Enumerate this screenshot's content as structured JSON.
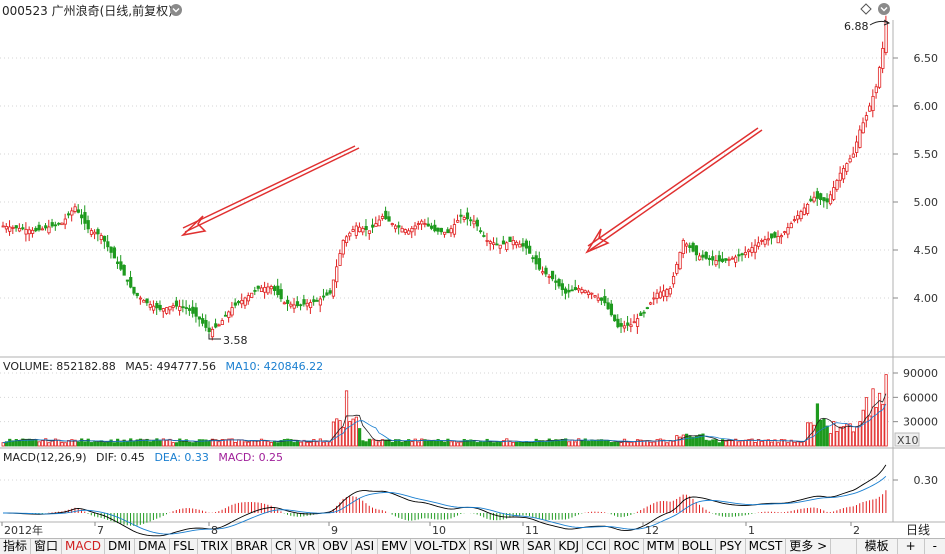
{
  "header": {
    "title": "000523 广州浪奇(日线,前复权)",
    "dropdown_icon": "chevron-down-icon",
    "diamond_icon": "diamond-icon",
    "settings_icon": "chevron-down-circle-icon"
  },
  "price_panel": {
    "high_label": "6.88",
    "low_label": "3.58",
    "y_ticks": [
      "4.00",
      "4.50",
      "5.00",
      "5.50",
      "6.00",
      "6.50"
    ]
  },
  "volume_panel": {
    "legend": {
      "name": "VOLUME: 852182.88",
      "ma5": "MA5: 494777.56",
      "ma10": "MA10: 420846.22"
    },
    "y_ticks": [
      "30000",
      "60000",
      "90000"
    ],
    "unit": "X10"
  },
  "macd_panel": {
    "legend": {
      "name": "MACD(12,26,9)",
      "dif": "DIF: 0.45",
      "dea": "DEA: 0.33",
      "macd": "MACD: 0.25"
    },
    "y_ticks": [
      "0.30"
    ]
  },
  "date_axis": {
    "labels": [
      "2012年",
      "7",
      "8",
      "9",
      "10",
      "11",
      "12",
      "1",
      "2"
    ],
    "period_label": "日线"
  },
  "tabs": [
    "指标",
    "窗口",
    "MACD",
    "DMI",
    "DMA",
    "FSL",
    "TRIX",
    "BRAR",
    "CR",
    "VR",
    "OBV",
    "ASI",
    "EMV",
    "VOL-TDX",
    "RSI",
    "WR",
    "SAR",
    "KDJ",
    "CCI",
    "ROC",
    "MTM",
    "BOLL",
    "PSY",
    "MCST",
    "更多 >"
  ],
  "active_tab": "MACD",
  "right_tabs": [
    "模板",
    "+",
    "-"
  ],
  "colors": {
    "up": "#e02020",
    "down": "#1e9a1e",
    "arrow": "#e03030",
    "dif": "#000000",
    "dea": "#1a7fd0",
    "macd_text": "#a0209a",
    "ma10": "#1a7fd0"
  },
  "chart_data": {
    "type": "candlestick",
    "title": "000523 广州浪奇(日线,前复权)",
    "x_range": [
      "2012-06",
      "2013-02"
    ],
    "ylim": [
      3.5,
      6.95
    ],
    "annotations": [
      {
        "text": "6.88",
        "type": "high"
      },
      {
        "text": "3.58",
        "type": "low"
      }
    ],
    "price_waypoints": [
      [
        0,
        4.75
      ],
      [
        10,
        4.7
      ],
      [
        18,
        4.78
      ],
      [
        22,
        4.95
      ],
      [
        26,
        4.72
      ],
      [
        30,
        4.65
      ],
      [
        36,
        4.3
      ],
      [
        40,
        4.05
      ],
      [
        44,
        3.95
      ],
      [
        48,
        3.88
      ],
      [
        52,
        3.92
      ],
      [
        56,
        3.9
      ],
      [
        60,
        3.78
      ],
      [
        63,
        3.65
      ],
      [
        66,
        3.72
      ],
      [
        70,
        3.9
      ],
      [
        74,
        4.0
      ],
      [
        78,
        4.1
      ],
      [
        82,
        4.12
      ],
      [
        86,
        3.95
      ],
      [
        90,
        3.92
      ],
      [
        96,
        3.97
      ],
      [
        100,
        4.05
      ],
      [
        104,
        4.6
      ],
      [
        108,
        4.75
      ],
      [
        112,
        4.7
      ],
      [
        116,
        4.85
      ],
      [
        120,
        4.75
      ],
      [
        124,
        4.7
      ],
      [
        128,
        4.8
      ],
      [
        132,
        4.7
      ],
      [
        136,
        4.68
      ],
      [
        140,
        4.85
      ],
      [
        144,
        4.8
      ],
      [
        148,
        4.6
      ],
      [
        152,
        4.55
      ],
      [
        156,
        4.6
      ],
      [
        160,
        4.52
      ],
      [
        164,
        4.3
      ],
      [
        168,
        4.2
      ],
      [
        172,
        4.05
      ],
      [
        176,
        4.1
      ],
      [
        180,
        4.05
      ],
      [
        184,
        3.95
      ],
      [
        188,
        3.7
      ],
      [
        192,
        3.72
      ],
      [
        196,
        3.85
      ],
      [
        200,
        4.05
      ],
      [
        204,
        4.1
      ],
      [
        208,
        4.6
      ],
      [
        212,
        4.45
      ],
      [
        216,
        4.4
      ],
      [
        220,
        4.38
      ],
      [
        226,
        4.45
      ],
      [
        232,
        4.6
      ],
      [
        238,
        4.65
      ],
      [
        244,
        4.9
      ],
      [
        248,
        5.05
      ],
      [
        252,
        5.0
      ],
      [
        256,
        5.3
      ],
      [
        260,
        5.5
      ],
      [
        262,
        5.75
      ],
      [
        264,
        5.9
      ],
      [
        267,
        6.2
      ],
      [
        269,
        6.6
      ],
      [
        270,
        6.88
      ]
    ],
    "volume_ylim": [
      0,
      95000
    ],
    "volume_ticks": [
      30000,
      60000,
      90000
    ],
    "macd_ylim": [
      -0.15,
      0.5
    ]
  }
}
